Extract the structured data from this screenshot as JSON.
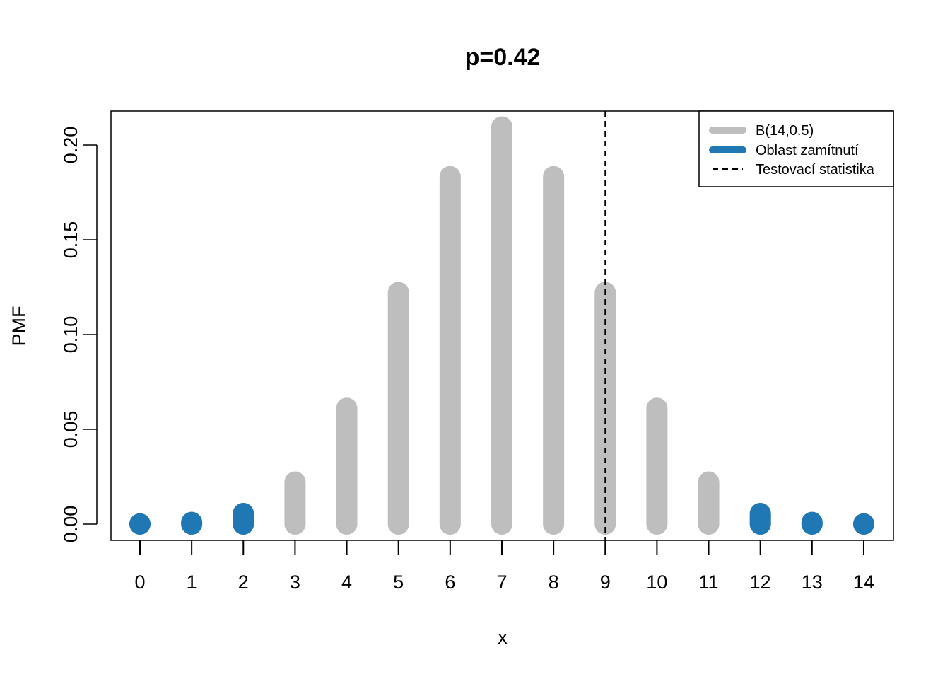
{
  "chart_data": {
    "type": "bar",
    "title": "p=0.42",
    "xlabel": "x",
    "ylabel": "PMF",
    "ylim": [
      0,
      0.21
    ],
    "grid": false,
    "legend_position": "top-right",
    "x": [
      0,
      1,
      2,
      3,
      4,
      5,
      6,
      7,
      8,
      9,
      10,
      11,
      12,
      13,
      14
    ],
    "x_tick_labels": [
      "0",
      "1",
      "2",
      "3",
      "4",
      "5",
      "6",
      "7",
      "8",
      "9",
      "10",
      "11",
      "12",
      "13",
      "14"
    ],
    "y_ticks": [
      0,
      0.05,
      0.1,
      0.15,
      0.2
    ],
    "y_tick_labels": [
      "0.00",
      "0.05",
      "0.10",
      "0.15",
      "0.20"
    ],
    "series": [
      {
        "name": "B(14,0.5)",
        "color": "#bebebe",
        "values": [
          0.0001,
          0.0009,
          0.0056,
          0.0222,
          0.0611,
          0.1222,
          0.1833,
          0.2095,
          0.1833,
          0.1222,
          0.0611,
          0.0222,
          0.0056,
          0.0009,
          0.0001
        ]
      },
      {
        "name": "Oblast zamítnutí",
        "color": "#1f78b4",
        "x": [
          0,
          1,
          2,
          12,
          13,
          14
        ],
        "values": [
          0.0001,
          0.0009,
          0.0056,
          0.0056,
          0.0009,
          0.0001
        ]
      }
    ],
    "reference_line": {
      "name": "Testovací statistika",
      "x": 9,
      "style": "dashed",
      "color": "#000000"
    }
  }
}
